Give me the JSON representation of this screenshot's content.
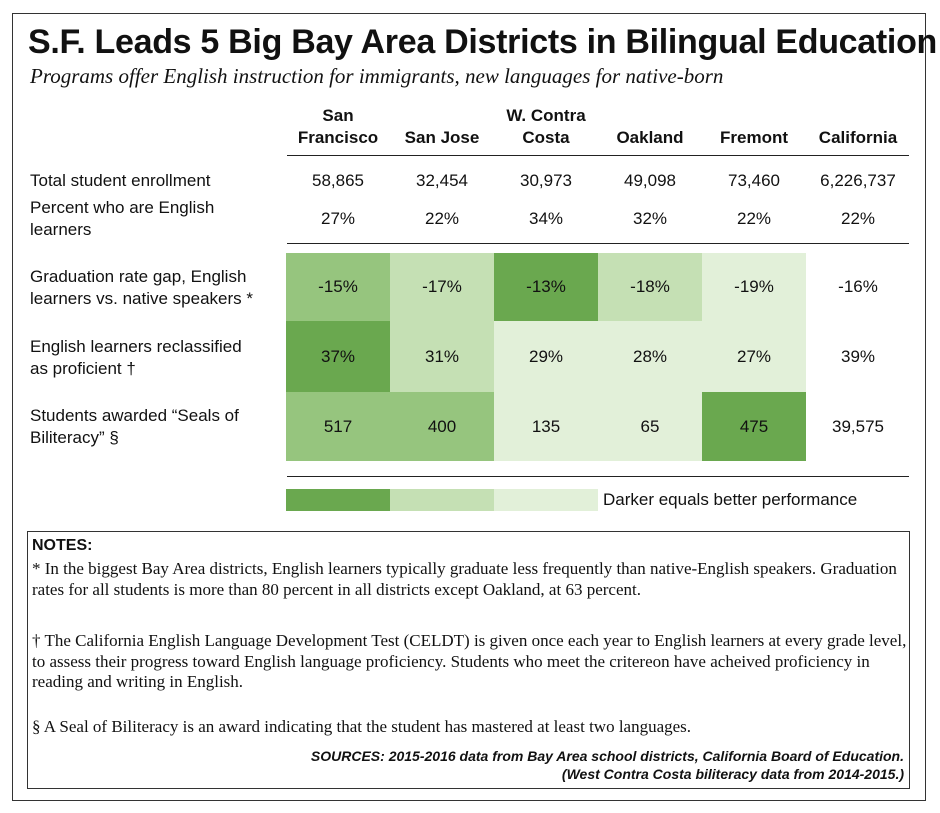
{
  "title": "S.F. Leads 5 Big Bay Area Districts in Bilingual Education",
  "subtitle": "Programs offer English instruction for immigrants, new languages for native-born",
  "columns": [
    "San\nFrancisco",
    "San Jose",
    "W. Contra\nCosta",
    "Oakland",
    "Fremont",
    "California"
  ],
  "rows": [
    {
      "label": "Total student enrollment",
      "values": [
        "58,865",
        "32,454",
        "30,973",
        "49,098",
        "73,460",
        "6,226,737"
      ]
    },
    {
      "label": "Percent who are English\nlearners",
      "values": [
        "27%",
        "22%",
        "34%",
        "32%",
        "22%",
        "22%"
      ]
    },
    {
      "label": "Graduation rate gap, English\nlearners vs. native speakers *",
      "values": [
        "-15%",
        "-17%",
        "-13%",
        "-18%",
        "-19%",
        "-16%"
      ]
    },
    {
      "label": "English learners reclassified\nas proficient †",
      "values": [
        "37%",
        "31%",
        "29%",
        "28%",
        "27%",
        "39%"
      ]
    },
    {
      "label": "Students awarded “Seals of\nBiliteracy” §",
      "values": [
        "517",
        "400",
        "135",
        "65",
        "475",
        "39,575"
      ]
    }
  ],
  "shading": {
    "levels": [
      [
        2,
        1,
        3,
        1,
        0
      ],
      [
        3,
        1,
        0,
        0,
        0
      ],
      [
        2,
        2,
        0,
        0,
        3
      ]
    ],
    "palette": [
      "#e2f0d9",
      "#c5e0b4",
      "#96c57e",
      "#6aa84f"
    ]
  },
  "legend": {
    "swatches": [
      "#6aa84f",
      "#c5e0b4",
      "#e2f0d9"
    ],
    "label": "Darker equals better performance"
  },
  "notes": {
    "title": "NOTES:",
    "items": [
      "* In the biggest Bay Area districts, English learners typically graduate less frequently than native-English speakers. Graduation rates for all students is more than 80 percent in all districts except Oakland, at 63 percent.",
      "† The California English Language Development Test (CELDT) is given once each year to English learners at every grade level, to assess their progress toward English language proficiency. Students who meet the critereon have acheived proficiency in reading and writing in English.",
      "§ A Seal of Biliteracy is an award indicating that the student has mastered at least two languages."
    ],
    "sources": "SOURCES: 2015-2016 data from Bay Area school districts, California Board of Education.\n(West Contra Costa biliteracy data from 2014-2015.)"
  }
}
